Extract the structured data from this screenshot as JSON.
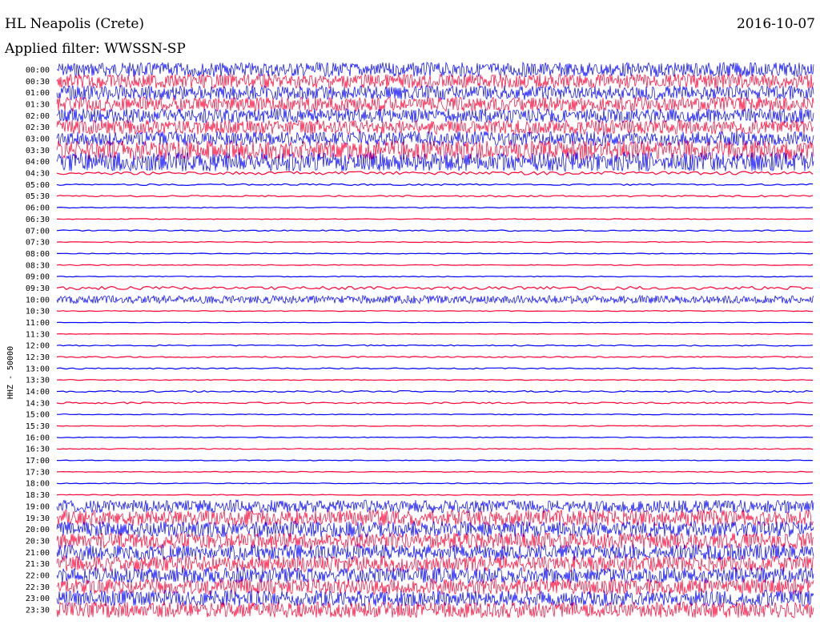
{
  "header": {
    "station": "HL Neapolis (Crete)",
    "filter": "Applied filter: WWSSN-SP",
    "date": "2016-10-07"
  },
  "chart_data": {
    "type": "line",
    "title": "HL Neapolis (Crete)",
    "subtitle": "Applied filter: WWSSN-SP",
    "ylabel": "HHZ - 50000",
    "xlabel": "",
    "date": "2016-10-07",
    "grid": false,
    "legend": "none",
    "colors": [
      "#0000ff",
      "#ff0033"
    ],
    "rows": [
      {
        "label": "00:00",
        "amp": 9
      },
      {
        "label": "00:30",
        "amp": 9
      },
      {
        "label": "01:00",
        "amp": 9
      },
      {
        "label": "01:30",
        "amp": 9
      },
      {
        "label": "02:00",
        "amp": 9
      },
      {
        "label": "02:30",
        "amp": 9
      },
      {
        "label": "03:00",
        "amp": 9
      },
      {
        "label": "03:30",
        "amp": 12
      },
      {
        "label": "04:00",
        "amp": 12
      },
      {
        "label": "04:30",
        "amp": 2
      },
      {
        "label": "05:00",
        "amp": 1
      },
      {
        "label": "05:30",
        "amp": 1
      },
      {
        "label": "06:00",
        "amp": 0.5
      },
      {
        "label": "06:30",
        "amp": 0.5
      },
      {
        "label": "07:00",
        "amp": 0.8
      },
      {
        "label": "07:30",
        "amp": 0.5
      },
      {
        "label": "08:00",
        "amp": 0.5
      },
      {
        "label": "08:30",
        "amp": 0.5
      },
      {
        "label": "09:00",
        "amp": 0.5
      },
      {
        "label": "09:30",
        "amp": 2
      },
      {
        "label": "10:00",
        "amp": 5
      },
      {
        "label": "10:30",
        "amp": 0.5
      },
      {
        "label": "11:00",
        "amp": 0.3
      },
      {
        "label": "11:30",
        "amp": 0.3
      },
      {
        "label": "12:00",
        "amp": 0.8
      },
      {
        "label": "12:30",
        "amp": 0.8
      },
      {
        "label": "13:00",
        "amp": 0.8
      },
      {
        "label": "13:30",
        "amp": 0.5
      },
      {
        "label": "14:00",
        "amp": 1
      },
      {
        "label": "14:30",
        "amp": 1
      },
      {
        "label": "15:00",
        "amp": 0.5
      },
      {
        "label": "15:30",
        "amp": 0.5
      },
      {
        "label": "16:00",
        "amp": 0.5
      },
      {
        "label": "16:30",
        "amp": 0.5
      },
      {
        "label": "17:00",
        "amp": 0.5
      },
      {
        "label": "17:30",
        "amp": 0.5
      },
      {
        "label": "18:00",
        "amp": 0.5
      },
      {
        "label": "18:30",
        "amp": 0.5
      },
      {
        "label": "19:00",
        "amp": 8
      },
      {
        "label": "19:30",
        "amp": 10
      },
      {
        "label": "20:00",
        "amp": 10
      },
      {
        "label": "20:30",
        "amp": 10
      },
      {
        "label": "21:00",
        "amp": 10
      },
      {
        "label": "21:30",
        "amp": 10
      },
      {
        "label": "22:00",
        "amp": 10
      },
      {
        "label": "22:30",
        "amp": 10
      },
      {
        "label": "23:00",
        "amp": 10
      },
      {
        "label": "23:30",
        "amp": 10
      }
    ]
  }
}
